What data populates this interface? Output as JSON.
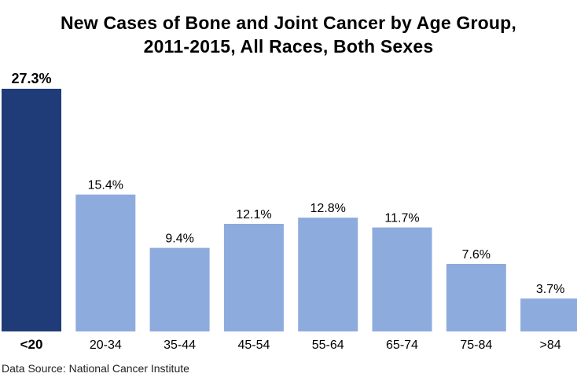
{
  "title_line1": "New Cases of Bone and Joint Cancer by Age Group,",
  "title_line2": "2011-2015, All Races, Both Sexes",
  "source": "Data Source: National Cancer Institute",
  "colors": {
    "highlight": "#1f3c78",
    "bar": "#8eabdd",
    "text": "#000000"
  },
  "chart_data": {
    "type": "bar",
    "title": "New Cases of Bone and Joint Cancer by Age Group, 2011-2015, All Races, Both Sexes",
    "categories": [
      "<20",
      "20-34",
      "35-44",
      "45-54",
      "55-64",
      "65-74",
      "75-84",
      ">84"
    ],
    "values": [
      27.3,
      15.4,
      9.4,
      12.1,
      12.8,
      11.7,
      7.6,
      3.7
    ],
    "labels": [
      "27.3%",
      "15.4%",
      "9.4%",
      "12.1%",
      "12.8%",
      "11.7%",
      "7.6%",
      "3.7%"
    ],
    "highlight_index": 0,
    "xlabel": "",
    "ylabel": "",
    "grid": false,
    "legend": "none"
  }
}
